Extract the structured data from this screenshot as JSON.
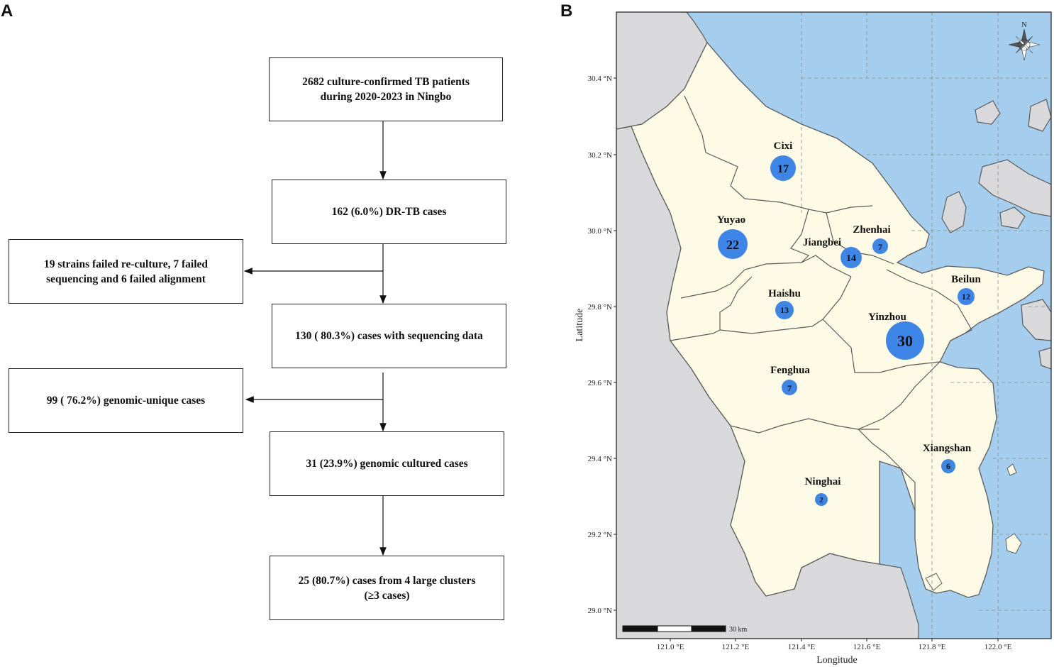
{
  "panels": {
    "a": "A",
    "b": "B"
  },
  "flowchart": {
    "step1": "2682 culture-confirmed TB patients\nduring 2020-2023 in Ningbo",
    "step2": "162 (6.0%) DR-TB cases",
    "excluded1": "19 strains failed re-culture, 7 failed\nsequencing and 6 failed alignment",
    "step3": "130 ( 80.3%) cases with sequencing data",
    "excluded2": "99 ( 76.2%) genomic-unique cases",
    "step4": "31 (23.9%) genomic cultured cases",
    "step5": "25 (80.7%) cases from 4 large clusters\n(≥3 cases)"
  },
  "map": {
    "xlabel": "Longitude",
    "ylabel": "Latitude",
    "north": "N",
    "scalebar": "30 km",
    "lon_ticks": [
      "121.0 °E",
      "121.2 °E",
      "121.4 °E",
      "121.6 °E",
      "121.8 °E",
      "122.0 °E"
    ],
    "lat_ticks": [
      "30.4 °N",
      "30.2 °N",
      "30.0 °N",
      "29.8 °N",
      "29.6 °N",
      "29.4 °N",
      "29.2 °N",
      "29.0 °N"
    ],
    "districts": [
      {
        "name": "Cixi",
        "count": "17"
      },
      {
        "name": "Yuyao",
        "count": "22"
      },
      {
        "name": "Zhenhai",
        "count": "7"
      },
      {
        "name": "Jiangbei",
        "count": "14"
      },
      {
        "name": "Haishu",
        "count": "13"
      },
      {
        "name": "Beilun",
        "count": "12"
      },
      {
        "name": "Yinzhou",
        "count": "30"
      },
      {
        "name": "Fenghua",
        "count": "7"
      },
      {
        "name": "Xiangshan",
        "count": "6"
      },
      {
        "name": "Ninghai",
        "count": "2"
      }
    ],
    "colors": {
      "sea": "#a4cdee",
      "land_outside": "#d9d9db",
      "ningbo": "#fdfbe5",
      "bubble": "#3d86e8",
      "border": "#5b5b5b"
    }
  }
}
